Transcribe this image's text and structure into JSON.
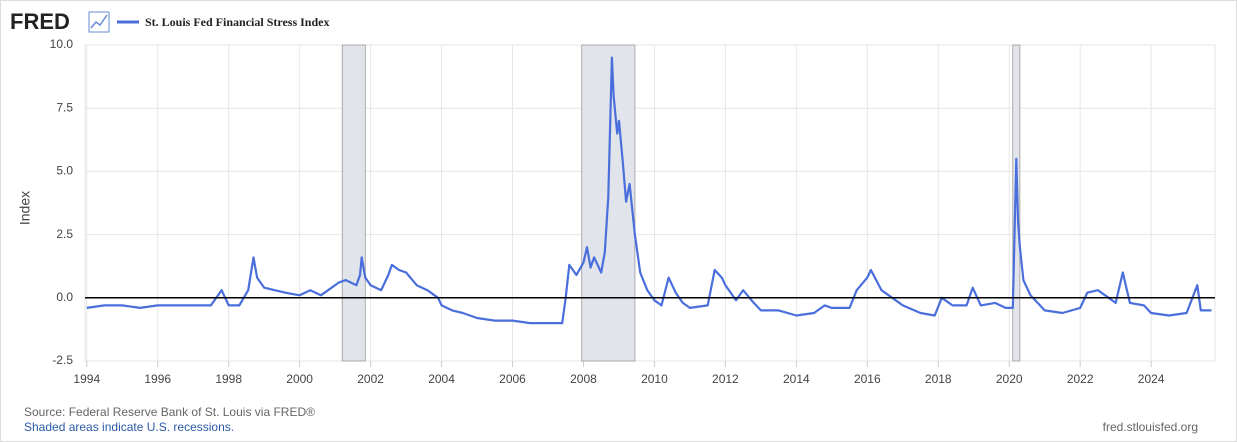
{
  "brand": "FRED",
  "chart_data": {
    "type": "line",
    "ylabel": "Index",
    "xlim": [
      1993.95,
      2025.8
    ],
    "xticks": [
      1994,
      1996,
      1998,
      2000,
      2002,
      2004,
      2006,
      2008,
      2010,
      2012,
      2014,
      2016,
      2018,
      2020,
      2022,
      2024
    ],
    "ylim": [
      -2.5,
      10
    ],
    "yticks": [
      -2.5,
      {
        "value": 0,
        "label": "0.0"
      },
      2.5,
      {
        "value": 5,
        "label": "5.0"
      },
      7.5,
      {
        "value": 10,
        "label": "10.0"
      }
    ],
    "grid": true,
    "zero_line": true,
    "recessions": [
      [
        2001.2,
        2001.85
      ],
      [
        2007.95,
        2009.45
      ],
      [
        2020.1,
        2020.3
      ]
    ],
    "series": [
      {
        "name": "St. Louis Fed Financial Stress Index",
        "color": "#4a6fdc",
        "x": [
          1994.0,
          1994.5,
          1995.0,
          1995.5,
          1996.0,
          1996.5,
          1997.0,
          1997.5,
          1997.8,
          1998.0,
          1998.3,
          1998.55,
          1998.7,
          1998.8,
          1999.0,
          1999.3,
          1999.6,
          2000.0,
          2000.3,
          2000.6,
          2000.9,
          2001.1,
          2001.3,
          2001.6,
          2001.7,
          2001.75,
          2001.85,
          2002.0,
          2002.3,
          2002.5,
          2002.6,
          2002.8,
          2003.0,
          2003.3,
          2003.6,
          2003.9,
          2004.0,
          2004.3,
          2004.6,
          2005.0,
          2005.5,
          2006.0,
          2006.5,
          2007.0,
          2007.4,
          2007.5,
          2007.6,
          2007.8,
          2008.0,
          2008.1,
          2008.2,
          2008.3,
          2008.5,
          2008.6,
          2008.7,
          2008.8,
          2008.85,
          2008.95,
          2009.0,
          2009.1,
          2009.2,
          2009.3,
          2009.45,
          2009.6,
          2009.8,
          2010.0,
          2010.2,
          2010.4,
          2010.6,
          2010.8,
          2011.0,
          2011.5,
          2011.7,
          2011.9,
          2012.0,
          2012.3,
          2012.5,
          2012.8,
          2013.0,
          2013.5,
          2014.0,
          2014.5,
          2014.8,
          2015.0,
          2015.5,
          2015.7,
          2016.0,
          2016.1,
          2016.4,
          2016.8,
          2017.0,
          2017.5,
          2017.9,
          2018.1,
          2018.4,
          2018.8,
          2018.97,
          2019.2,
          2019.6,
          2019.9,
          2020.1,
          2020.2,
          2020.25,
          2020.3,
          2020.4,
          2020.6,
          2021.0,
          2021.5,
          2022.0,
          2022.2,
          2022.5,
          2022.8,
          2023.0,
          2023.2,
          2023.4,
          2023.8,
          2024.0,
          2024.5,
          2025.0,
          2025.3,
          2025.4,
          2025.7
        ],
        "values": [
          -0.4,
          -0.3,
          -0.3,
          -0.4,
          -0.3,
          -0.3,
          -0.3,
          -0.3,
          0.3,
          -0.3,
          -0.3,
          0.3,
          1.6,
          0.8,
          0.4,
          0.3,
          0.2,
          0.1,
          0.3,
          0.1,
          0.4,
          0.6,
          0.7,
          0.5,
          0.9,
          1.6,
          0.8,
          0.5,
          0.3,
          0.9,
          1.3,
          1.1,
          1.0,
          0.5,
          0.3,
          0.0,
          -0.3,
          -0.5,
          -0.6,
          -0.8,
          -0.9,
          -0.9,
          -1.0,
          -1.0,
          -1.0,
          0.0,
          1.3,
          0.9,
          1.4,
          2.0,
          1.2,
          1.6,
          1.0,
          1.8,
          4.0,
          9.5,
          8.0,
          6.5,
          7.0,
          5.5,
          3.8,
          4.5,
          2.5,
          1.0,
          0.3,
          -0.1,
          -0.3,
          0.8,
          0.2,
          -0.2,
          -0.4,
          -0.3,
          1.1,
          0.8,
          0.5,
          -0.1,
          0.3,
          -0.2,
          -0.5,
          -0.5,
          -0.7,
          -0.6,
          -0.3,
          -0.4,
          -0.4,
          0.3,
          0.8,
          1.1,
          0.3,
          -0.1,
          -0.3,
          -0.6,
          -0.7,
          0.0,
          -0.3,
          -0.3,
          0.4,
          -0.3,
          -0.2,
          -0.4,
          -0.4,
          5.5,
          3.0,
          2.0,
          0.7,
          0.1,
          -0.5,
          -0.6,
          -0.4,
          0.2,
          0.3,
          0.0,
          -0.2,
          1.0,
          -0.2,
          -0.3,
          -0.6,
          -0.7,
          -0.6,
          0.5,
          -0.5,
          -0.5
        ]
      }
    ]
  },
  "footer": {
    "source": "Source: Federal Reserve Bank of St. Louis via FRED®",
    "note": "Shaded areas indicate U.S. recessions.",
    "site": "fred.stlouisfed.org"
  }
}
